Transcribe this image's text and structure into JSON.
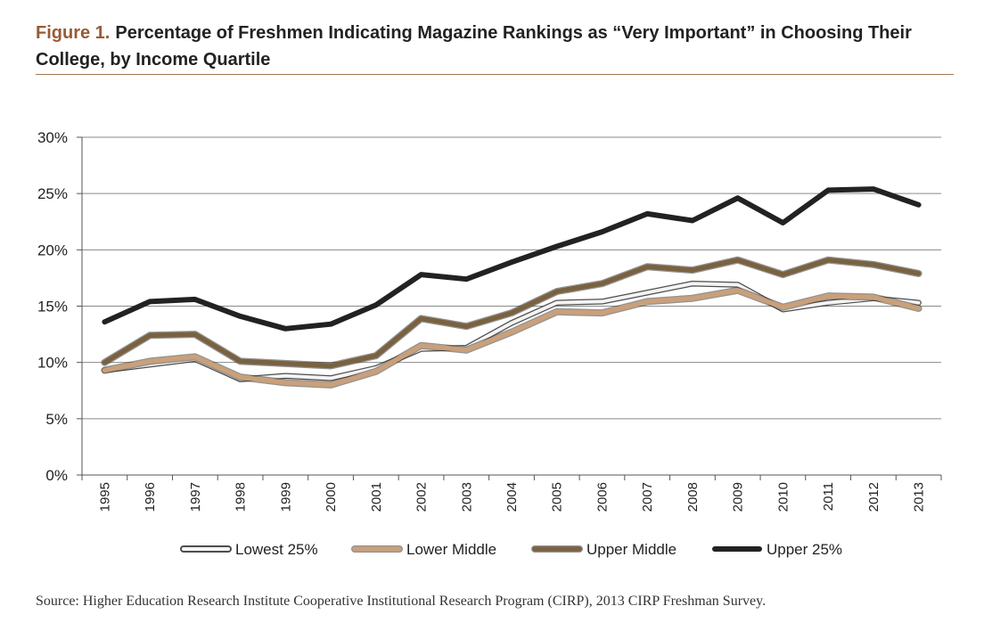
{
  "figure": {
    "label": "Figure 1.",
    "title": "Percentage of Freshmen Indicating Magazine Rankings as “Very Important” in Choosing Their College, by Income Quartile",
    "source": "Source: Higher Education Research Institute Cooperative Institutional Research Program (CIRP), 2013 CIRP Freshman Survey."
  },
  "chart_data": {
    "type": "line",
    "title": "Percentage of Freshmen Indicating Magazine Rankings as “Very Important” in Choosing Their College, by Income Quartile",
    "xlabel": "",
    "ylabel": "",
    "x": [
      "1995",
      "1996",
      "1997",
      "1998",
      "1999",
      "2000",
      "2001",
      "2002",
      "2003",
      "2004",
      "2005",
      "2006",
      "2007",
      "2008",
      "2009",
      "2010",
      "2011",
      "2012",
      "2013"
    ],
    "ylim": [
      0,
      30
    ],
    "yticks": [
      0,
      5,
      10,
      15,
      20,
      25,
      30
    ],
    "ytick_labels": [
      "0%",
      "5%",
      "10%",
      "15%",
      "20%",
      "25%",
      "30%"
    ],
    "grid": true,
    "legend_position": "bottom",
    "series": [
      {
        "name": "Lowest 25%",
        "color": "#f4f4f4",
        "values": [
          9.3,
          9.8,
          10.3,
          8.5,
          8.8,
          8.6,
          9.5,
          11.2,
          11.3,
          13.5,
          15.3,
          15.4,
          16.2,
          17.0,
          16.9,
          14.7,
          15.3,
          15.7,
          15.3
        ]
      },
      {
        "name": "Lower Middle",
        "color": "#c9a07a",
        "values": [
          9.3,
          10.1,
          10.5,
          8.7,
          8.2,
          8.0,
          9.2,
          11.5,
          11.1,
          12.7,
          14.5,
          14.4,
          15.4,
          15.7,
          16.4,
          14.9,
          15.9,
          15.8,
          14.8
        ]
      },
      {
        "name": "Upper Middle",
        "color": "#7a6240",
        "values": [
          10.0,
          12.4,
          12.5,
          10.1,
          9.9,
          9.7,
          10.6,
          13.9,
          13.2,
          14.4,
          16.3,
          17.0,
          18.5,
          18.2,
          19.1,
          17.8,
          19.1,
          18.7,
          17.9
        ]
      },
      {
        "name": "Upper 25%",
        "color": "#222222",
        "values": [
          13.6,
          15.4,
          15.6,
          14.1,
          13.0,
          13.4,
          15.1,
          17.8,
          17.4,
          18.9,
          20.3,
          21.6,
          23.2,
          22.6,
          24.6,
          22.4,
          25.3,
          25.4,
          24.0
        ]
      }
    ]
  }
}
